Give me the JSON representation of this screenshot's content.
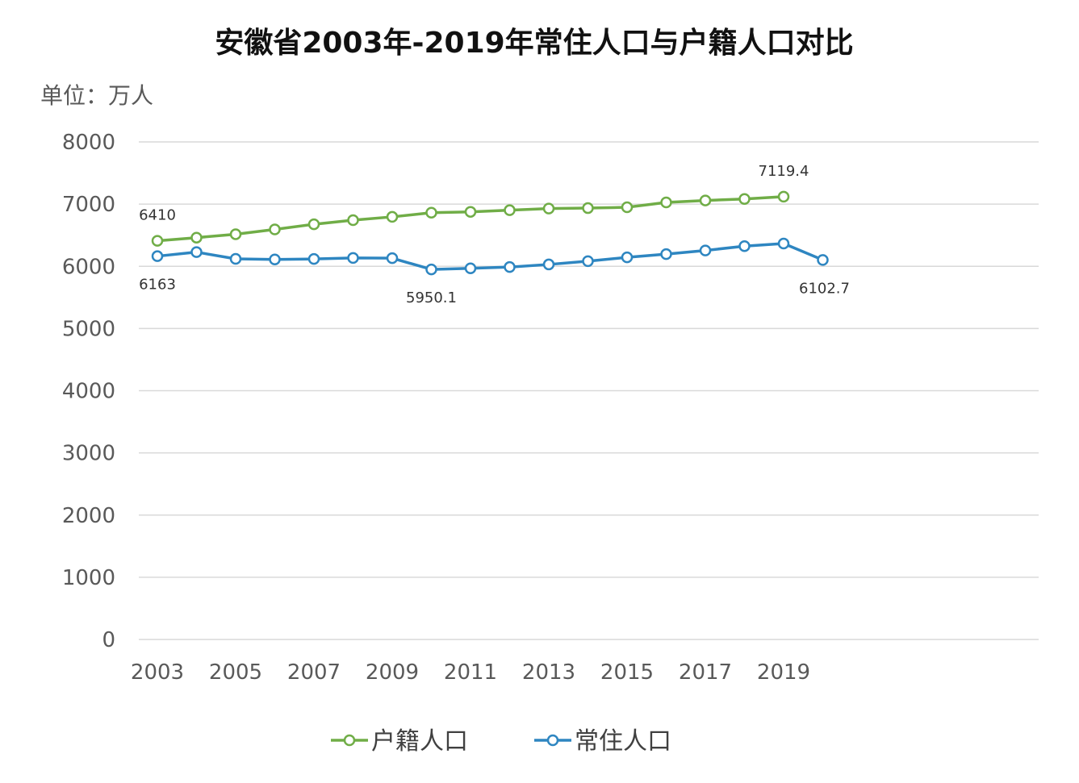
{
  "chart_data": {
    "type": "line",
    "title": "安徽省2003年-2019年常住人口与户籍人口对比",
    "unit_label": "单位：万人",
    "ylim": [
      0,
      8000
    ],
    "yticks": [
      0,
      1000,
      2000,
      3000,
      4000,
      5000,
      6000,
      7000,
      8000
    ],
    "xtick_labels": [
      "2003",
      "2005",
      "2007",
      "2009",
      "2011",
      "2013",
      "2015",
      "2017",
      "2019"
    ],
    "grid": true,
    "legend_position": "bottom",
    "series": [
      {
        "name": "户籍人口",
        "color": "#70ad47",
        "x": [
          2003,
          2004,
          2005,
          2006,
          2007,
          2008,
          2009,
          2010,
          2011,
          2012,
          2013,
          2014,
          2015,
          2016,
          2017,
          2018,
          2019
        ],
        "values": [
          6410,
          6461,
          6516,
          6593,
          6676,
          6742,
          6795,
          6862,
          6876,
          6902,
          6929,
          6936,
          6949,
          7027,
          7059,
          7083,
          7119.4
        ],
        "labels": [
          {
            "index": 0,
            "text": "6410",
            "pos": "above"
          },
          {
            "index": 16,
            "text": "7119.4",
            "pos": "above"
          }
        ]
      },
      {
        "name": "常住人口",
        "color": "#2e86c1",
        "x": [
          2003,
          2004,
          2005,
          2006,
          2007,
          2008,
          2009,
          2010,
          2011,
          2012,
          2013,
          2014,
          2015,
          2016,
          2017,
          2018,
          2019,
          2020
        ],
        "values": [
          6163,
          6228,
          6120,
          6110,
          6118,
          6135,
          6131,
          5950.1,
          5968,
          5988,
          6030,
          6083,
          6144,
          6196,
          6255,
          6324,
          6366,
          6102.7
        ],
        "labels": [
          {
            "index": 0,
            "text": "6163",
            "pos": "below"
          },
          {
            "index": 7,
            "text": "5950.1",
            "pos": "below"
          },
          {
            "index": 17,
            "text": "6102.7",
            "pos": "below"
          }
        ]
      }
    ]
  }
}
